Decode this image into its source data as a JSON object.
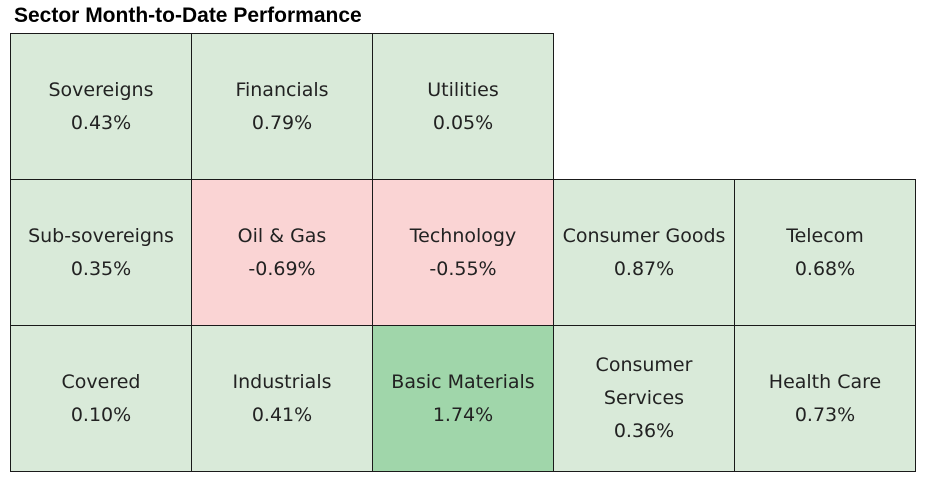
{
  "chart_data": {
    "type": "heatmap",
    "title": "Sector Month-to-Date Performance",
    "colors": {
      "positive": "#d9ead9",
      "negative": "#fad4d4",
      "strong_positive": "#a0d6aa"
    },
    "rows": [
      [
        {
          "name": "Sovereigns",
          "value": "0.43%",
          "tone": "positive"
        },
        {
          "name": "Financials",
          "value": "0.79%",
          "tone": "positive"
        },
        {
          "name": "Utilities",
          "value": "0.05%",
          "tone": "positive"
        }
      ],
      [
        {
          "name": "Sub-sovereigns",
          "value": "0.35%",
          "tone": "positive"
        },
        {
          "name": "Oil & Gas",
          "value": "-0.69%",
          "tone": "negative"
        },
        {
          "name": "Technology",
          "value": "-0.55%",
          "tone": "negative"
        },
        {
          "name": "Consumer Goods",
          "value": "0.87%",
          "tone": "positive"
        },
        {
          "name": "Telecom",
          "value": "0.68%",
          "tone": "positive"
        }
      ],
      [
        {
          "name": "Covered",
          "value": "0.10%",
          "tone": "positive"
        },
        {
          "name": "Industrials",
          "value": "0.41%",
          "tone": "positive"
        },
        {
          "name": "Basic Materials",
          "value": "1.74%",
          "tone": "strong_positive"
        },
        {
          "name": "Consumer\nServices",
          "value": "0.36%",
          "tone": "positive"
        },
        {
          "name": "Health Care",
          "value": "0.73%",
          "tone": "positive"
        }
      ]
    ]
  }
}
